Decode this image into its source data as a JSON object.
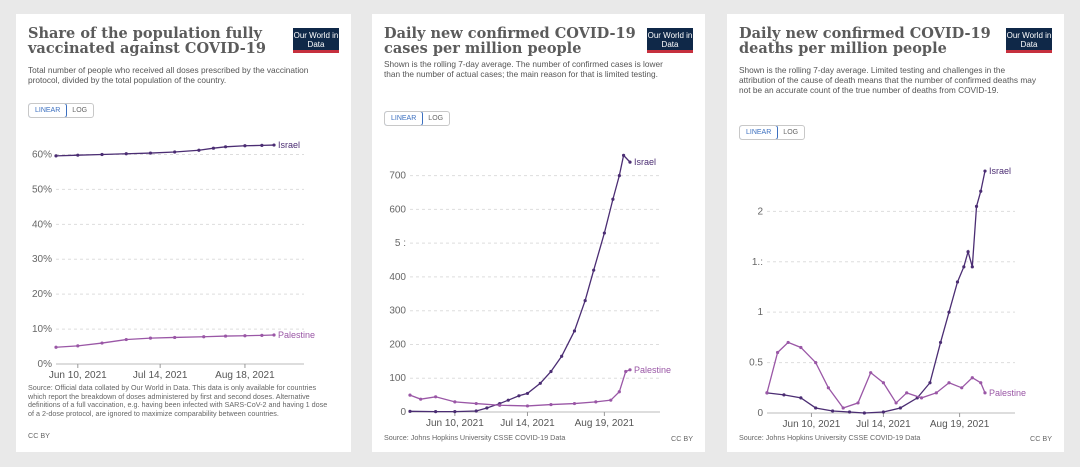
{
  "charts": [
    {
      "title": "Share of the population fully vaccinated against COVID-19",
      "subtitle": "Total number of people who received all doses prescribed by the vaccination protocol, divided by the total population of the country.",
      "logo": "Our World in Data",
      "toggle": {
        "linear": "LINEAR",
        "log": "LOG"
      },
      "source": "Source: Official data collated by Our World in Data. This data is only available for countries which report the breakdown of doses administered by first and second doses. Alternative definitions of a full vaccination, e.g. having been infected with SARS-CoV-2 and having 1 dose of a 2-dose protocol, are ignored to maximize comparability between countries.",
      "license": "CC BY"
    },
    {
      "title": "Daily new confirmed COVID-19 cases per million people",
      "subtitle": "Shown is the rolling 7-day average. The number of confirmed cases is lower than the number of actual cases; the main reason for that is limited testing.",
      "logo": "Our World in Data",
      "toggle": {
        "linear": "LINEAR",
        "log": "LOG"
      },
      "source": "Source: Johns Hopkins University CSSE COVID-19 Data",
      "license": "CC BY"
    },
    {
      "title": "Daily new confirmed COVID-19 deaths per million people",
      "subtitle": "Shown is the rolling 7-day average. Limited testing and challenges in the attribution of the cause of death means that the number of confirmed deaths may not be an accurate count of the true number of deaths from COVID-19.",
      "logo": "Our World in Data",
      "toggle": {
        "linear": "LINEAR",
        "log": "LOG"
      },
      "source": "Source: Johns Hopkins University CSSE COVID-19 Data",
      "license": "CC BY"
    }
  ],
  "chart_data": [
    {
      "type": "line",
      "title": "Share of the population fully vaccinated against COVID-19",
      "y_tick_labels": [
        "0%",
        "10%",
        "20%",
        "30%",
        "40%",
        "50%",
        "60%"
      ],
      "y_ticks": [
        0,
        10,
        20,
        30,
        40,
        50,
        60
      ],
      "ylim": [
        0,
        63
      ],
      "x_tick_labels": [
        "Jun 10, 2021",
        "Jul 14, 2021",
        "Aug 18, 2021"
      ],
      "x_ticks": [
        "2021-06-10",
        "2021-07-14",
        "2021-08-18"
      ],
      "xlim": [
        "2021-06-01",
        "2021-08-30"
      ],
      "grid": true,
      "series": [
        {
          "name": "Israel",
          "color": "#4b2d73",
          "x": [
            "2021-06-01",
            "2021-06-10",
            "2021-06-20",
            "2021-06-30",
            "2021-07-10",
            "2021-07-20",
            "2021-07-30",
            "2021-08-05",
            "2021-08-10",
            "2021-08-18",
            "2021-08-25",
            "2021-08-30"
          ],
          "y": [
            59.6,
            59.8,
            60.0,
            60.2,
            60.4,
            60.7,
            61.2,
            61.8,
            62.2,
            62.5,
            62.6,
            62.7
          ]
        },
        {
          "name": "Palestine",
          "color": "#9a57a6",
          "x": [
            "2021-06-01",
            "2021-06-10",
            "2021-06-20",
            "2021-06-30",
            "2021-07-10",
            "2021-07-20",
            "2021-08-01",
            "2021-08-10",
            "2021-08-18",
            "2021-08-25",
            "2021-08-30"
          ],
          "y": [
            4.8,
            5.2,
            6.0,
            7.0,
            7.4,
            7.6,
            7.8,
            8.0,
            8.1,
            8.2,
            8.3
          ]
        }
      ]
    },
    {
      "type": "line",
      "title": "Daily new confirmed COVID-19 cases per million people",
      "y_tick_labels": [
        "0",
        "100",
        "200",
        "300",
        "400",
        "5 :",
        "600",
        "700"
      ],
      "y_ticks": [
        0,
        100,
        200,
        300,
        400,
        500,
        600,
        700
      ],
      "ylim": [
        0,
        770
      ],
      "x_tick_labels": [
        "Jun 10, 2021",
        "Jul 14, 2021",
        "Aug 19, 2021"
      ],
      "x_ticks": [
        "2021-06-10",
        "2021-07-14",
        "2021-08-19"
      ],
      "xlim": [
        "2021-05-20",
        "2021-08-31"
      ],
      "grid": true,
      "series": [
        {
          "name": "Israel",
          "color": "#4b2d73",
          "x": [
            "2021-05-20",
            "2021-06-01",
            "2021-06-10",
            "2021-06-20",
            "2021-06-25",
            "2021-07-01",
            "2021-07-05",
            "2021-07-10",
            "2021-07-14",
            "2021-07-20",
            "2021-07-25",
            "2021-07-30",
            "2021-08-05",
            "2021-08-10",
            "2021-08-14",
            "2021-08-19",
            "2021-08-23",
            "2021-08-26",
            "2021-08-28",
            "2021-08-31"
          ],
          "y": [
            2,
            1,
            1,
            3,
            12,
            25,
            35,
            48,
            55,
            85,
            120,
            165,
            240,
            330,
            420,
            530,
            630,
            700,
            760,
            740
          ]
        },
        {
          "name": "Palestine",
          "color": "#9a57a6",
          "x": [
            "2021-05-20",
            "2021-05-25",
            "2021-06-01",
            "2021-06-10",
            "2021-06-20",
            "2021-07-01",
            "2021-07-14",
            "2021-07-25",
            "2021-08-05",
            "2021-08-15",
            "2021-08-22",
            "2021-08-26",
            "2021-08-29",
            "2021-08-31"
          ],
          "y": [
            50,
            38,
            45,
            30,
            25,
            20,
            18,
            22,
            25,
            30,
            35,
            60,
            120,
            125
          ]
        }
      ]
    },
    {
      "type": "line",
      "title": "Daily new confirmed COVID-19 deaths per million people",
      "y_tick_labels": [
        "0",
        "0.5",
        "1",
        "1.:",
        "2"
      ],
      "y_ticks": [
        0,
        0.5,
        1,
        1.5,
        2
      ],
      "ylim": [
        0,
        2.45
      ],
      "x_tick_labels": [
        "Jun 10, 2021",
        "Jul 14, 2021",
        "Aug 19, 2021"
      ],
      "x_ticks": [
        "2021-06-10",
        "2021-07-14",
        "2021-08-19"
      ],
      "xlim": [
        "2021-05-20",
        "2021-08-31"
      ],
      "grid": true,
      "series": [
        {
          "name": "Israel",
          "color": "#4b2d73",
          "x": [
            "2021-05-20",
            "2021-05-28",
            "2021-06-05",
            "2021-06-12",
            "2021-06-20",
            "2021-06-28",
            "2021-07-05",
            "2021-07-14",
            "2021-07-22",
            "2021-07-30",
            "2021-08-05",
            "2021-08-10",
            "2021-08-14",
            "2021-08-18",
            "2021-08-21",
            "2021-08-23",
            "2021-08-25",
            "2021-08-27",
            "2021-08-29",
            "2021-08-31"
          ],
          "y": [
            0.2,
            0.18,
            0.15,
            0.05,
            0.02,
            0.01,
            0.0,
            0.01,
            0.05,
            0.15,
            0.3,
            0.7,
            1.0,
            1.3,
            1.45,
            1.6,
            1.45,
            2.05,
            2.2,
            2.4
          ]
        },
        {
          "name": "Palestine",
          "color": "#9a57a6",
          "x": [
            "2021-05-20",
            "2021-05-25",
            "2021-05-30",
            "2021-06-05",
            "2021-06-12",
            "2021-06-18",
            "2021-06-25",
            "2021-07-02",
            "2021-07-08",
            "2021-07-14",
            "2021-07-20",
            "2021-07-25",
            "2021-08-01",
            "2021-08-08",
            "2021-08-14",
            "2021-08-20",
            "2021-08-25",
            "2021-08-29",
            "2021-08-31"
          ],
          "y": [
            0.2,
            0.6,
            0.7,
            0.65,
            0.5,
            0.25,
            0.05,
            0.1,
            0.4,
            0.3,
            0.1,
            0.2,
            0.15,
            0.2,
            0.3,
            0.25,
            0.35,
            0.3,
            0.2
          ]
        }
      ]
    }
  ]
}
